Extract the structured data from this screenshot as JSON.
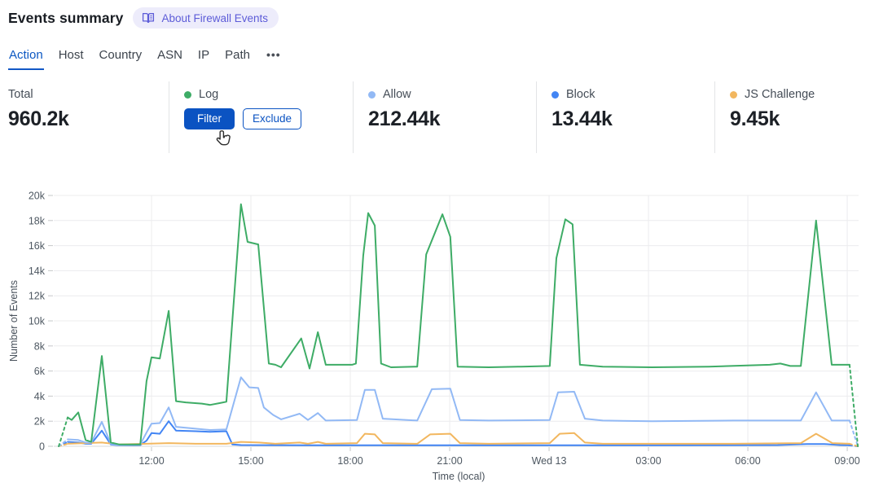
{
  "header": {
    "title": "Events summary",
    "about_label": "About Firewall Events"
  },
  "tabs": {
    "items": [
      {
        "label": "Action",
        "active": true
      },
      {
        "label": "Host",
        "active": false
      },
      {
        "label": "Country",
        "active": false
      },
      {
        "label": "ASN",
        "active": false
      },
      {
        "label": "IP",
        "active": false
      },
      {
        "label": "Path",
        "active": false
      }
    ],
    "more_label": "•••"
  },
  "stats": {
    "cards": [
      {
        "label": "Total",
        "value": "960.2k",
        "dot_color": null,
        "buttons": []
      },
      {
        "label": "Log",
        "value": null,
        "dot_color": "#3eac66",
        "buttons": [
          {
            "label": "Filter",
            "variant": "primary"
          },
          {
            "label": "Exclude",
            "variant": "secondary"
          }
        ]
      },
      {
        "label": "Allow",
        "value": "212.44k",
        "dot_color": "#92b9f5",
        "buttons": []
      },
      {
        "label": "Block",
        "value": "13.44k",
        "dot_color": "#4285f4",
        "buttons": []
      },
      {
        "label": "JS Challenge",
        "value": "9.45k",
        "dot_color": "#f2b75f",
        "buttons": []
      }
    ]
  },
  "chart_data": {
    "type": "line",
    "title": "",
    "xlabel": "Time (local)",
    "ylabel": "Number of Events",
    "ylim": [
      0,
      20000
    ],
    "values_unit": "thousands of events (k)",
    "x_axis_note": "t = hours relative to 12:00 of first day; range approx -2.8 to 21.3; dashed first/last segments indicate partial time buckets",
    "x_ticks": [
      {
        "t": 0,
        "label": "12:00"
      },
      {
        "t": 3,
        "label": "15:00"
      },
      {
        "t": 6,
        "label": "18:00"
      },
      {
        "t": 9,
        "label": "21:00"
      },
      {
        "t": 12,
        "label": "Wed 13"
      },
      {
        "t": 15,
        "label": "03:00"
      },
      {
        "t": 18,
        "label": "06:00"
      },
      {
        "t": 21,
        "label": "09:00"
      }
    ],
    "y_ticks": [
      {
        "v": 0,
        "label": "0"
      },
      {
        "v": 2,
        "label": "2k"
      },
      {
        "v": 4,
        "label": "4k"
      },
      {
        "v": 6,
        "label": "6k"
      },
      {
        "v": 8,
        "label": "8k"
      },
      {
        "v": 10,
        "label": "10k"
      },
      {
        "v": 12,
        "label": "12k"
      },
      {
        "v": 14,
        "label": "14k"
      },
      {
        "v": 16,
        "label": "16k"
      },
      {
        "v": 18,
        "label": "18k"
      },
      {
        "v": 20,
        "label": "20k"
      }
    ],
    "grid": true,
    "legend_position": "stats-row-above-chart",
    "series": [
      {
        "name": "Log",
        "color": "#3eac66",
        "points": [
          [
            -2.8,
            0
          ],
          [
            -2.53,
            2.3
          ],
          [
            -2.41,
            2.1
          ],
          [
            -2.21,
            2.7
          ],
          [
            -1.99,
            0.5
          ],
          [
            -1.82,
            0.35
          ],
          [
            -1.5,
            7.2
          ],
          [
            -1.23,
            0.3
          ],
          [
            -0.98,
            0.15
          ],
          [
            -0.34,
            0.15
          ],
          [
            -0.15,
            5.2
          ],
          [
            0,
            7.1
          ],
          [
            0.25,
            7.0
          ],
          [
            0.52,
            10.8
          ],
          [
            0.74,
            3.6
          ],
          [
            1.03,
            3.5
          ],
          [
            1.52,
            3.4
          ],
          [
            1.77,
            3.3
          ],
          [
            2.07,
            3.45
          ],
          [
            2.26,
            3.55
          ],
          [
            2.7,
            19.3
          ],
          [
            2.9,
            16.3
          ],
          [
            3.22,
            16.1
          ],
          [
            3.54,
            6.6
          ],
          [
            3.74,
            6.5
          ],
          [
            3.91,
            6.3
          ],
          [
            4.52,
            8.6
          ],
          [
            4.77,
            6.2
          ],
          [
            5.02,
            9.1
          ],
          [
            5.26,
            6.5
          ],
          [
            6.05,
            6.5
          ],
          [
            6.17,
            6.6
          ],
          [
            6.39,
            15.2
          ],
          [
            6.54,
            18.6
          ],
          [
            6.74,
            17.6
          ],
          [
            6.93,
            6.6
          ],
          [
            7.23,
            6.3
          ],
          [
            8.02,
            6.35
          ],
          [
            8.29,
            15.3
          ],
          [
            8.78,
            18.5
          ],
          [
            9.02,
            16.7
          ],
          [
            9.24,
            6.35
          ],
          [
            10.18,
            6.3
          ],
          [
            11.16,
            6.35
          ],
          [
            12.02,
            6.4
          ],
          [
            12.22,
            15.0
          ],
          [
            12.49,
            18.1
          ],
          [
            12.71,
            17.7
          ],
          [
            12.93,
            6.5
          ],
          [
            13.62,
            6.35
          ],
          [
            15.1,
            6.3
          ],
          [
            16.82,
            6.35
          ],
          [
            18.66,
            6.5
          ],
          [
            18.98,
            6.6
          ],
          [
            19.28,
            6.4
          ],
          [
            19.6,
            6.4
          ],
          [
            20.06,
            18.0
          ],
          [
            20.53,
            6.5
          ],
          [
            21.07,
            6.5
          ],
          [
            21.32,
            0
          ]
        ]
      },
      {
        "name": "Allow",
        "color": "#92b9f5",
        "points": [
          [
            -2.8,
            0
          ],
          [
            -2.53,
            0.55
          ],
          [
            -2.21,
            0.5
          ],
          [
            -1.99,
            0.3
          ],
          [
            -1.82,
            0.3
          ],
          [
            -1.5,
            1.95
          ],
          [
            -1.23,
            0.2
          ],
          [
            -0.98,
            0.1
          ],
          [
            -0.34,
            0.15
          ],
          [
            -0.15,
            1.1
          ],
          [
            0,
            1.8
          ],
          [
            0.25,
            1.85
          ],
          [
            0.52,
            3.1
          ],
          [
            0.74,
            1.55
          ],
          [
            1.33,
            1.4
          ],
          [
            1.77,
            1.3
          ],
          [
            2.26,
            1.35
          ],
          [
            2.7,
            5.5
          ],
          [
            2.95,
            4.7
          ],
          [
            3.22,
            4.65
          ],
          [
            3.39,
            3.1
          ],
          [
            3.67,
            2.5
          ],
          [
            3.91,
            2.15
          ],
          [
            4.47,
            2.6
          ],
          [
            4.72,
            2.1
          ],
          [
            5.02,
            2.65
          ],
          [
            5.26,
            2.05
          ],
          [
            6.2,
            2.1
          ],
          [
            6.44,
            4.5
          ],
          [
            6.74,
            4.5
          ],
          [
            6.98,
            2.2
          ],
          [
            8.02,
            2.05
          ],
          [
            8.46,
            4.55
          ],
          [
            9.02,
            4.6
          ],
          [
            9.31,
            2.1
          ],
          [
            10.18,
            2.05
          ],
          [
            12.02,
            2.1
          ],
          [
            12.27,
            4.3
          ],
          [
            12.76,
            4.35
          ],
          [
            13.08,
            2.2
          ],
          [
            13.62,
            2.05
          ],
          [
            15.1,
            2.0
          ],
          [
            17.55,
            2.05
          ],
          [
            19.6,
            2.05
          ],
          [
            20.06,
            4.3
          ],
          [
            20.53,
            2.05
          ],
          [
            21.07,
            2.05
          ],
          [
            21.32,
            0
          ]
        ]
      },
      {
        "name": "Block",
        "color": "#4285f4",
        "points": [
          [
            -2.8,
            0
          ],
          [
            -2.53,
            0.35
          ],
          [
            -2.21,
            0.3
          ],
          [
            -1.99,
            0.2
          ],
          [
            -1.82,
            0.2
          ],
          [
            -1.5,
            1.25
          ],
          [
            -1.23,
            0.15
          ],
          [
            -0.98,
            0.08
          ],
          [
            -0.34,
            0.1
          ],
          [
            -0.15,
            0.45
          ],
          [
            0,
            1.05
          ],
          [
            0.25,
            1.0
          ],
          [
            0.52,
            2.0
          ],
          [
            0.74,
            1.25
          ],
          [
            1.33,
            1.2
          ],
          [
            1.77,
            1.15
          ],
          [
            2.26,
            1.2
          ],
          [
            2.44,
            0.15
          ],
          [
            2.7,
            0.1
          ],
          [
            5.26,
            0.08
          ],
          [
            8.02,
            0.08
          ],
          [
            12.02,
            0.08
          ],
          [
            15.1,
            0.08
          ],
          [
            18.9,
            0.1
          ],
          [
            19.78,
            0.18
          ],
          [
            20.3,
            0.18
          ],
          [
            20.78,
            0.1
          ],
          [
            21.07,
            0.08
          ],
          [
            21.32,
            0
          ]
        ]
      },
      {
        "name": "JS Challenge",
        "color": "#f2b75f",
        "points": [
          [
            -2.8,
            0
          ],
          [
            -2.53,
            0.2
          ],
          [
            -1.5,
            0.3
          ],
          [
            -0.98,
            0.15
          ],
          [
            -0.15,
            0.2
          ],
          [
            0.52,
            0.25
          ],
          [
            1.33,
            0.2
          ],
          [
            2.26,
            0.2
          ],
          [
            2.7,
            0.35
          ],
          [
            3.25,
            0.3
          ],
          [
            3.74,
            0.2
          ],
          [
            4.47,
            0.3
          ],
          [
            4.72,
            0.2
          ],
          [
            5.02,
            0.35
          ],
          [
            5.26,
            0.2
          ],
          [
            6.2,
            0.25
          ],
          [
            6.44,
            1.0
          ],
          [
            6.74,
            0.95
          ],
          [
            6.98,
            0.25
          ],
          [
            8.02,
            0.2
          ],
          [
            8.41,
            0.95
          ],
          [
            9.02,
            1.0
          ],
          [
            9.31,
            0.25
          ],
          [
            10.18,
            0.2
          ],
          [
            12.02,
            0.25
          ],
          [
            12.32,
            1.0
          ],
          [
            12.76,
            1.05
          ],
          [
            13.08,
            0.3
          ],
          [
            13.62,
            0.2
          ],
          [
            15.1,
            0.2
          ],
          [
            17.55,
            0.2
          ],
          [
            19.6,
            0.25
          ],
          [
            20.06,
            1.0
          ],
          [
            20.55,
            0.25
          ],
          [
            21.07,
            0.2
          ],
          [
            21.32,
            0
          ]
        ]
      }
    ]
  }
}
